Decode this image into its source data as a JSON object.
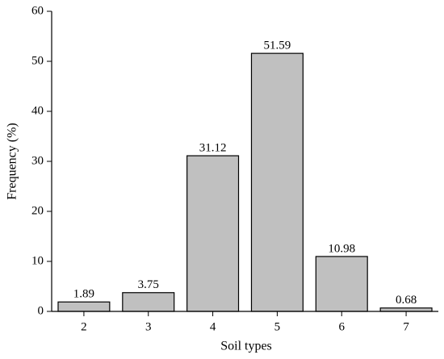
{
  "chart_data": {
    "type": "bar",
    "x_label": "Soil types",
    "y_label": "Frequency (%)",
    "categories": [
      "2",
      "3",
      "4",
      "5",
      "6",
      "7"
    ],
    "values": [
      1.89,
      3.75,
      31.12,
      51.59,
      10.98,
      0.68
    ],
    "color": "#c0c0c0",
    "ylim": [
      0,
      60
    ],
    "yticks": [
      0,
      10,
      20,
      30,
      40,
      50,
      60
    ]
  }
}
